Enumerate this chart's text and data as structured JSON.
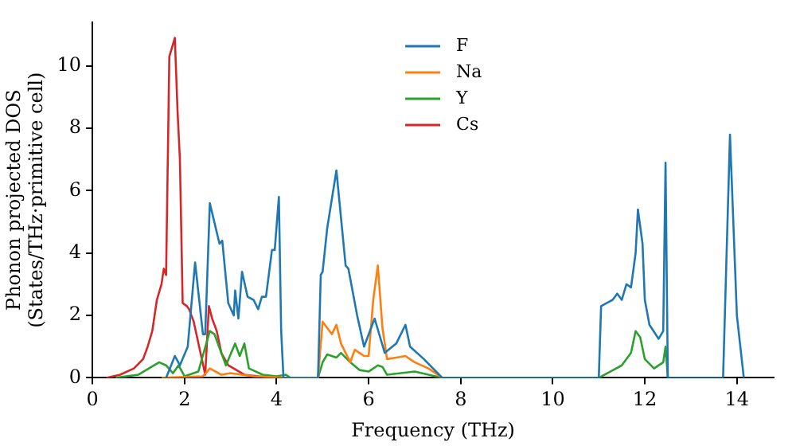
{
  "chart_data": {
    "type": "line",
    "xlabel": "Frequency (THz)",
    "ylabel": "Phonon projected DOS\n(States/THz·primitive cell)",
    "xlim": [
      0,
      14.8
    ],
    "ylim": [
      0,
      11.4
    ],
    "xticks": [
      0,
      2,
      4,
      6,
      8,
      10,
      12,
      14
    ],
    "yticks": [
      0,
      2,
      4,
      6,
      8,
      10
    ],
    "grid": false,
    "legend": "top",
    "marker": "none",
    "line_style": "solid",
    "series": [
      {
        "name": "F",
        "color": "#1f77b4",
        "x": [
          1.6,
          1.79,
          1.9,
          2.07,
          2.23,
          2.4,
          2.45,
          2.55,
          2.76,
          2.82,
          2.95,
          3.07,
          3.1,
          3.17,
          3.25,
          3.37,
          3.5,
          3.6,
          3.68,
          3.77,
          3.9,
          3.96,
          4.05,
          4.1,
          4.15,
          4.9,
          4.96,
          5.0,
          5.1,
          5.3,
          5.5,
          5.56,
          5.75,
          5.9,
          6.13,
          6.35,
          6.6,
          6.8,
          6.9,
          7.2,
          7.6,
          11.0,
          11.05,
          11.3,
          11.4,
          11.5,
          11.6,
          11.7,
          11.8,
          11.85,
          11.95,
          12.0,
          12.1,
          12.3,
          12.4,
          12.45,
          12.5,
          13.7,
          13.85,
          14.0,
          14.15
        ],
        "values": [
          0,
          0.7,
          0.4,
          1.0,
          3.7,
          1.4,
          1.4,
          5.6,
          4.3,
          4.4,
          2.4,
          2.0,
          2.8,
          1.9,
          3.4,
          2.6,
          2.5,
          2.2,
          2.6,
          2.6,
          4.1,
          4.1,
          5.8,
          1.5,
          0,
          0,
          3.3,
          3.4,
          4.8,
          6.65,
          3.6,
          3.5,
          2.0,
          1.0,
          1.9,
          0.8,
          1.1,
          1.7,
          1.0,
          0.6,
          0,
          0,
          2.3,
          2.5,
          2.7,
          2.5,
          3.0,
          2.9,
          4.0,
          5.4,
          4.3,
          2.5,
          1.7,
          1.25,
          1.5,
          6.9,
          0,
          0,
          7.8,
          2.0,
          0
        ]
      },
      {
        "name": "Na",
        "color": "#ff7f0e",
        "x": [
          1.5,
          2.4,
          2.55,
          2.8,
          3.0,
          3.5,
          4.2,
          4.9,
          5.0,
          5.2,
          5.3,
          5.4,
          5.5,
          5.6,
          5.7,
          5.9,
          6.0,
          6.1,
          6.2,
          6.3,
          6.4,
          6.6,
          6.8,
          7.0,
          7.3,
          7.6
        ],
        "values": [
          0,
          0.05,
          0.3,
          0.1,
          0.15,
          0.05,
          0,
          0,
          1.8,
          1.4,
          1.7,
          1.1,
          0.8,
          0.5,
          0.9,
          0.7,
          0.7,
          2.5,
          3.6,
          1.6,
          0.6,
          0.65,
          0.7,
          0.5,
          0.3,
          0
        ]
      },
      {
        "name": "Y",
        "color": "#2ca02c",
        "x": [
          0.5,
          1.0,
          1.45,
          1.6,
          1.75,
          1.87,
          2.0,
          2.3,
          2.55,
          2.65,
          2.9,
          3.1,
          3.2,
          3.3,
          3.4,
          3.7,
          4.0,
          4.2,
          4.3,
          4.9,
          5.0,
          5.1,
          5.3,
          5.4,
          5.6,
          5.8,
          6.0,
          6.2,
          6.3,
          6.4,
          7.0,
          7.6,
          11.0,
          11.5,
          11.7,
          11.8,
          11.9,
          12.0,
          12.2,
          12.4,
          12.45,
          12.5
        ],
        "values": [
          0,
          0.1,
          0.5,
          0.4,
          0.15,
          0.4,
          0.05,
          0.2,
          1.5,
          1.4,
          0.4,
          1.1,
          0.7,
          1.1,
          0.3,
          0.1,
          0.05,
          0.1,
          0,
          0,
          0.5,
          0.75,
          0.65,
          0.8,
          0.5,
          0.25,
          0.2,
          0.4,
          0.35,
          0.1,
          0.2,
          0,
          0,
          0.4,
          0.8,
          1.5,
          1.3,
          0.6,
          0.3,
          0.5,
          1.0,
          0
        ]
      },
      {
        "name": "Cs",
        "color": "#d62728",
        "x": [
          0.3,
          0.6,
          0.9,
          1.1,
          1.2,
          1.3,
          1.4,
          1.5,
          1.55,
          1.6,
          1.67,
          1.79,
          1.85,
          1.9,
          1.96,
          2.05,
          2.1,
          2.2,
          2.45,
          2.53,
          2.6,
          2.7,
          2.8,
          2.95,
          3.3,
          3.6,
          4.0
        ],
        "values": [
          0,
          0.1,
          0.3,
          0.6,
          1.0,
          1.5,
          2.5,
          3.0,
          3.5,
          3.3,
          10.3,
          10.9,
          8.5,
          7.0,
          2.4,
          2.3,
          2.2,
          1.8,
          0.1,
          2.3,
          1.9,
          1.5,
          0.8,
          0.4,
          0.1,
          0.05,
          0
        ]
      }
    ]
  }
}
